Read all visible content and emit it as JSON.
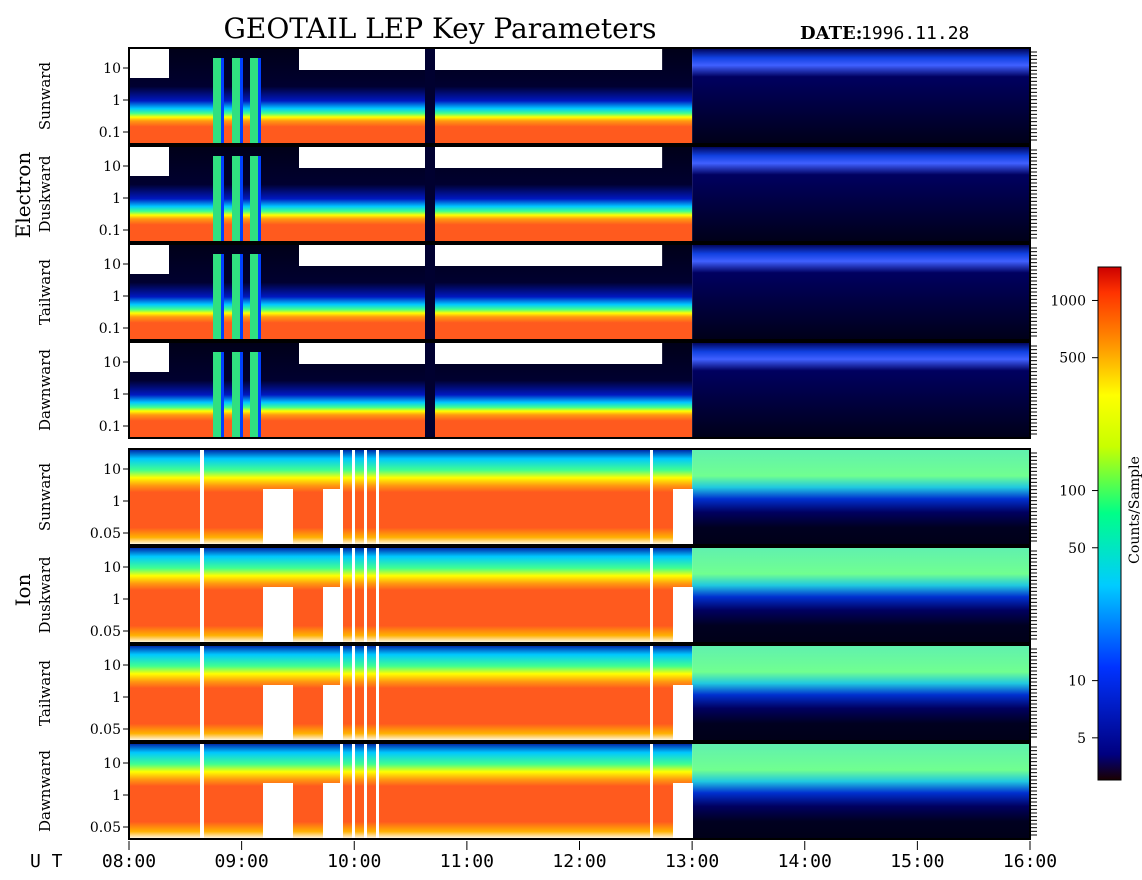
{
  "page": {
    "title": "GEOTAIL LEP Key Parameters",
    "date_label": "DATE:",
    "date_value": "1996.11.28",
    "time_axis_prefix": "U T"
  },
  "chart_data": {
    "type": "heatmap",
    "title": "GEOTAIL LEP Key Parameters",
    "x_axis": {
      "label": "U T",
      "range": [
        "08:00",
        "16:00"
      ],
      "ticks": [
        "08:00",
        "09:00",
        "10:00",
        "11:00",
        "12:00",
        "13:00",
        "14:00",
        "15:00",
        "16:00"
      ]
    },
    "groups": [
      {
        "name": "Electron",
        "panels": [
          {
            "name": "Sunward",
            "y_ticks": [
              "10",
              "1",
              "0.1"
            ],
            "y_scale": "log"
          },
          {
            "name": "Duskward",
            "y_ticks": [
              "10",
              "1",
              "0.1"
            ],
            "y_scale": "log"
          },
          {
            "name": "Tailward",
            "y_ticks": [
              "10",
              "1",
              "0.1"
            ],
            "y_scale": "log"
          },
          {
            "name": "Dawnward",
            "y_ticks": [
              "10",
              "1",
              "0.1"
            ],
            "y_scale": "log"
          }
        ]
      },
      {
        "name": "Ion",
        "panels": [
          {
            "name": "Sunward",
            "y_ticks": [
              "10",
              "1",
              "0.05"
            ],
            "y_scale": "log"
          },
          {
            "name": "Duskward",
            "y_ticks": [
              "10",
              "1",
              "0.05"
            ],
            "y_scale": "log"
          },
          {
            "name": "Tailward",
            "y_ticks": [
              "10",
              "1",
              "0.05"
            ],
            "y_scale": "log"
          },
          {
            "name": "Dawnward",
            "y_ticks": [
              "10",
              "1",
              "0.05"
            ],
            "y_scale": "log"
          }
        ]
      }
    ],
    "colorbar": {
      "label": "Counts/Sample",
      "scale": "log",
      "range": [
        3,
        1500
      ],
      "ticks": [
        "1000",
        "500",
        "100",
        "50",
        "10",
        "5"
      ],
      "colormap": [
        "#1a0000",
        "#000080",
        "#0033ff",
        "#00ccff",
        "#00ff88",
        "#c8ff00",
        "#ffff00",
        "#ff8800",
        "#ff3300",
        "#cc0000"
      ]
    },
    "dominant_colors": {
      "electron_core": "#ff5a1e",
      "electron_background": "#000020",
      "ion_core": "#ff5a1e",
      "ion_background": "#48e0a0"
    }
  }
}
